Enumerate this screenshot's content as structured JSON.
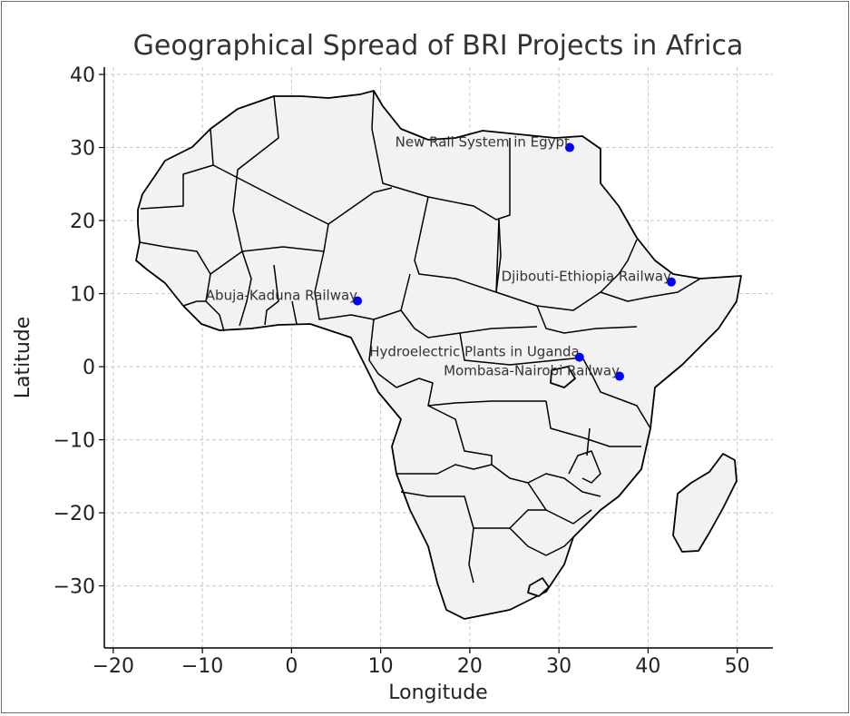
{
  "chart_data": {
    "type": "scatter",
    "title": "Geographical Spread of BRI Projects in Africa",
    "xlabel": "Longitude",
    "ylabel": "Latitude",
    "xlim": [
      -21,
      54
    ],
    "ylim": [
      -38.5,
      41
    ],
    "xticks": [
      -20,
      -10,
      0,
      10,
      20,
      30,
      40,
      50
    ],
    "yticks": [
      -30,
      -20,
      -10,
      0,
      10,
      20,
      30,
      40
    ],
    "grid": true,
    "marker_color": "#0000ff",
    "land_fill": "#f2f2f2",
    "border_color": "#000000",
    "points": [
      {
        "label": "New Rail System in Egypt",
        "lon": 31.2,
        "lat": 30.0
      },
      {
        "label": "Djibouti-Ethiopia Railway",
        "lon": 42.6,
        "lat": 11.6
      },
      {
        "label": "Abuja-Kaduna Railway",
        "lon": 7.4,
        "lat": 9.0
      },
      {
        "label": "Hydroelectric Plants in Uganda",
        "lon": 32.3,
        "lat": 1.3
      },
      {
        "label": "Mombasa-Nairobi Railway",
        "lon": 36.8,
        "lat": -1.3
      }
    ]
  }
}
